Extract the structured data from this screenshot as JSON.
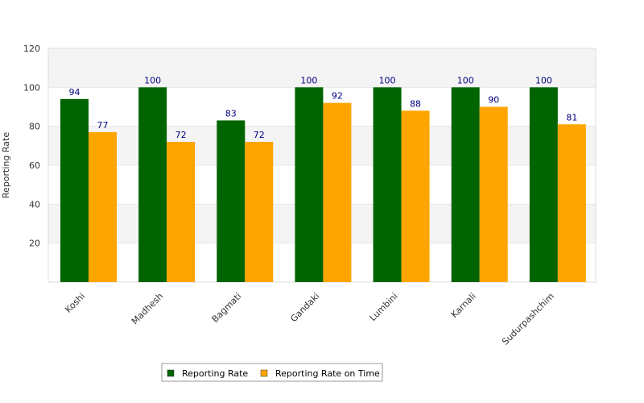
{
  "chart_data": {
    "type": "bar",
    "title": "",
    "xlabel": "",
    "ylabel": "Reporting Rate",
    "ylim": [
      0,
      120
    ],
    "yticks": [
      20,
      40,
      60,
      80,
      100,
      120
    ],
    "grid": "horizontal-bands",
    "legend_position": "bottom-center",
    "categories": [
      "Koshi",
      "Madhesh",
      "Bagmati",
      "Gandaki",
      "Lumbini",
      "Karnali",
      "Sudurpashchim"
    ],
    "series": [
      {
        "name": "Reporting Rate",
        "color": "#006400",
        "values": [
          94,
          100,
          83,
          100,
          100,
          100,
          100
        ]
      },
      {
        "name": "Reporting Rate on Time",
        "color": "#FFA500",
        "values": [
          77,
          72,
          72,
          92,
          88,
          90,
          81
        ]
      }
    ]
  }
}
